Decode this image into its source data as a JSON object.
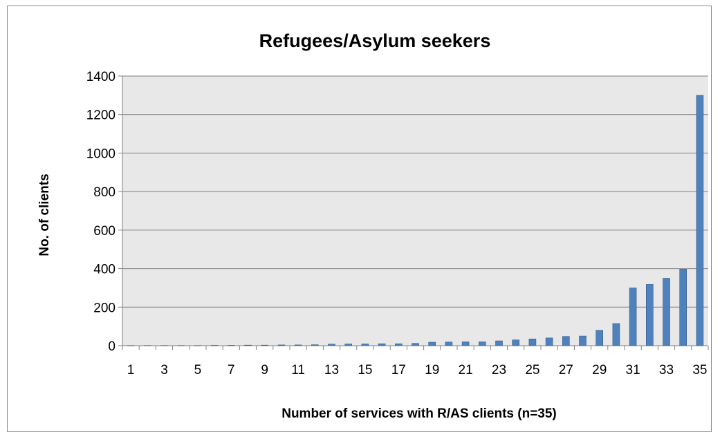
{
  "chart_data": {
    "type": "bar",
    "title": "Refugees/Asylum seekers",
    "xlabel": "Number of services with R/AS clients (n=35)",
    "ylabel": "No. of clients",
    "ylim": [
      0,
      1400
    ],
    "yticks": [
      0,
      200,
      400,
      600,
      800,
      1000,
      1200,
      1400
    ],
    "categories": [
      "1",
      "2",
      "3",
      "4",
      "5",
      "6",
      "7",
      "8",
      "9",
      "10",
      "11",
      "12",
      "13",
      "14",
      "15",
      "16",
      "17",
      "18",
      "19",
      "20",
      "21",
      "22",
      "23",
      "24",
      "25",
      "26",
      "27",
      "28",
      "29",
      "30",
      "31",
      "32",
      "33",
      "34",
      "35"
    ],
    "category_labels_shown": [
      "1",
      "3",
      "5",
      "7",
      "9",
      "11",
      "13",
      "15",
      "17",
      "19",
      "21",
      "23",
      "25",
      "27",
      "29",
      "31",
      "33",
      "35"
    ],
    "values": [
      1,
      1,
      1,
      1,
      1,
      2,
      2,
      3,
      3,
      4,
      4,
      5,
      8,
      9,
      9,
      10,
      10,
      12,
      18,
      19,
      20,
      20,
      25,
      30,
      35,
      40,
      48,
      50,
      80,
      115,
      300,
      318,
      350,
      397,
      1300
    ],
    "grid": "horizontal",
    "legend": "none",
    "colors": {
      "bar_fill": "#4F81BD",
      "bar_stroke": "#385D8A",
      "plot_background": "#E8E8E8",
      "gridline": "#808080"
    }
  }
}
